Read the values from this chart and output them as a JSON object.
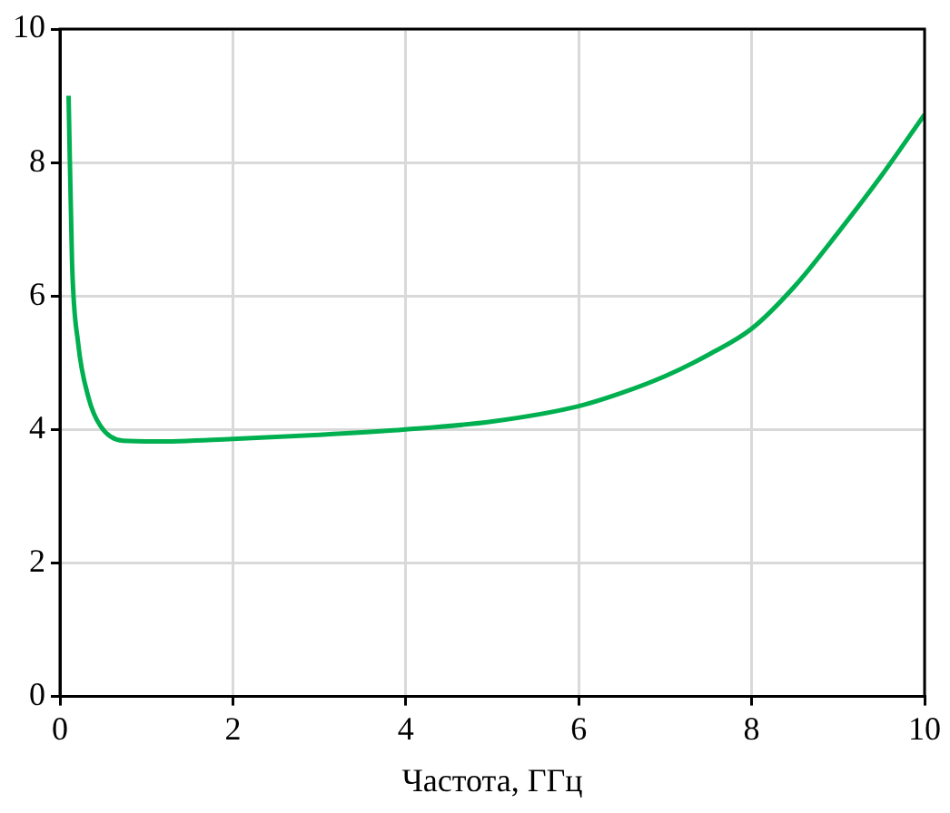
{
  "chart_data": {
    "type": "line",
    "xlabel": "Частота, ГГц",
    "x": [
      0.1,
      0.14,
      0.21,
      0.33,
      0.47,
      0.73,
      1.1,
      2,
      3,
      4,
      5,
      6,
      6.5,
      7,
      7.5,
      8,
      8.5,
      9,
      9.5,
      10
    ],
    "series": [
      {
        "color": "#00b050",
        "values": [
          9.0,
          6.5,
          5.3,
          4.48,
          4.05,
          3.83,
          3.82,
          3.86,
          3.92,
          4.0,
          4.12,
          4.35,
          4.55,
          4.8,
          5.12,
          5.51,
          6.15,
          6.95,
          7.8,
          8.72
        ]
      }
    ],
    "xlim": [
      0,
      10
    ],
    "xticks": [
      0,
      2,
      4,
      6,
      8,
      10
    ],
    "ylim": [
      0,
      10
    ],
    "yticks": [
      0,
      2,
      4,
      6,
      8,
      10
    ],
    "grid": true,
    "legend": false,
    "marker": "none",
    "line_style": "solid"
  }
}
